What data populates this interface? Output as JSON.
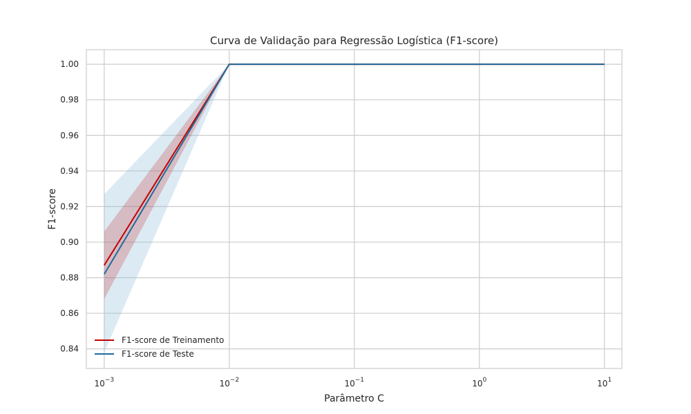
{
  "chart_data": {
    "type": "line",
    "title": "Curva de Validação para Regressão Logística (F1-score)",
    "xlabel": "Parâmetro C",
    "ylabel": "F1-score",
    "xscale": "log",
    "x": [
      0.001,
      0.01,
      0.1,
      1,
      10
    ],
    "xticks": [
      0.001,
      0.01,
      0.1,
      1,
      10
    ],
    "xtick_labels": [
      {
        "base": "10",
        "exp": "−3"
      },
      {
        "base": "10",
        "exp": "−2"
      },
      {
        "base": "10",
        "exp": "−1"
      },
      {
        "base": "10",
        "exp": "0"
      },
      {
        "base": "10",
        "exp": "1"
      }
    ],
    "xlim": [
      0.00072,
      13.8
    ],
    "ylim": [
      0.829,
      1.0082
    ],
    "yticks": [
      0.84,
      0.86,
      0.88,
      0.9,
      0.92,
      0.94,
      0.96,
      0.98,
      1.0
    ],
    "ytick_labels": [
      "0.84",
      "0.86",
      "0.88",
      "0.90",
      "0.92",
      "0.94",
      "0.96",
      "0.98",
      "1.00"
    ],
    "grid": true,
    "legend_position": "lower-left",
    "series": [
      {
        "name": "F1-score de Treinamento",
        "color": "#c00000",
        "band_color": "#c0000033",
        "values": [
          0.887,
          1.0,
          1.0,
          1.0,
          1.0
        ],
        "lower": [
          0.868,
          1.0,
          1.0,
          1.0,
          1.0
        ],
        "upper": [
          0.906,
          1.0,
          1.0,
          1.0,
          1.0
        ]
      },
      {
        "name": "F1-score de Teste",
        "color": "#1f6b9a",
        "band_color": "#8cbbd64d",
        "values": [
          0.882,
          1.0,
          1.0,
          1.0,
          1.0
        ],
        "lower": [
          0.838,
          1.0,
          1.0,
          1.0,
          1.0
        ],
        "upper": [
          0.927,
          1.0,
          1.0,
          1.0,
          1.0
        ]
      }
    ]
  }
}
